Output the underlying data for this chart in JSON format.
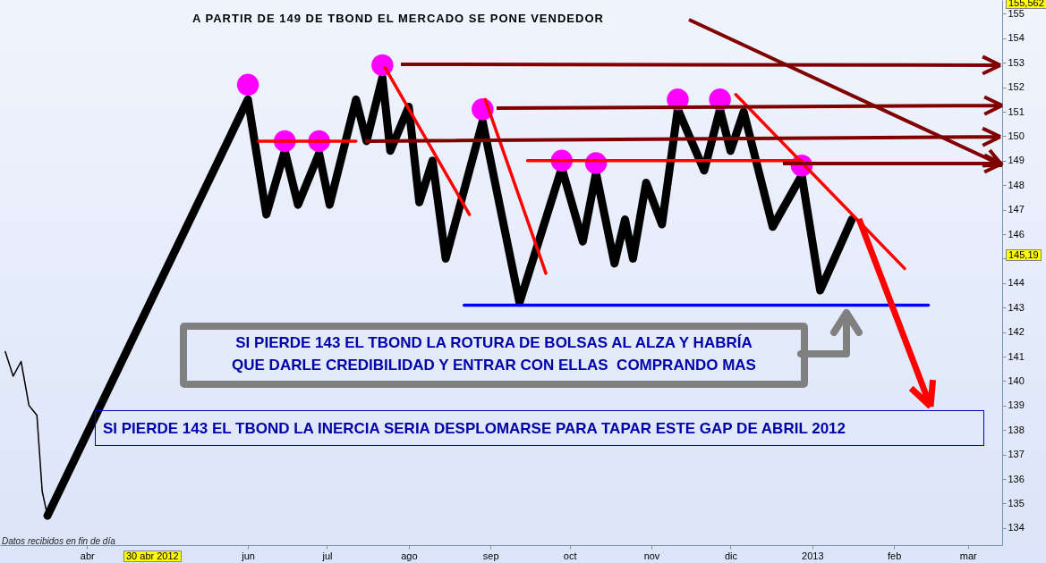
{
  "chart_data": {
    "type": "line",
    "title": "A PARTIR DE 149 DE TBOND EL MERCADO SE PONE VENDEDOR",
    "xlim": [
      "2012-02-28",
      "2013-03-14"
    ],
    "xticks": [
      {
        "value": "2012-04-01",
        "label": "abr"
      },
      {
        "value": "2012-06-01",
        "label": "jun"
      },
      {
        "value": "2012-07-01",
        "label": "jul"
      },
      {
        "value": "2012-08-01",
        "label": "ago"
      },
      {
        "value": "2012-09-01",
        "label": "sep"
      },
      {
        "value": "2012-10-01",
        "label": "oct"
      },
      {
        "value": "2012-11-01",
        "label": "nov"
      },
      {
        "value": "2012-12-01",
        "label": "dic"
      },
      {
        "value": "2013-01-01",
        "label": "2013"
      },
      {
        "value": "2013-02-01",
        "label": "feb"
      },
      {
        "value": "2013-03-01",
        "label": "mar"
      }
    ],
    "ylim": [
      133.3,
      155.562
    ],
    "yticks": [
      134,
      135,
      136,
      137,
      138,
      139,
      140,
      141,
      142,
      143,
      144,
      {
        "value": 145,
        "label": null
      },
      146,
      147,
      148,
      149,
      150,
      151,
      152,
      153,
      154,
      155
    ],
    "series": [
      {
        "color": "#000000",
        "x": [
          "2012-03-01",
          "2012-03-04",
          "2012-03-07",
          "2012-03-10",
          "2012-03-13",
          "2012-03-15",
          "2012-03-17"
        ],
        "values": [
          141.2,
          140.2,
          140.8,
          139,
          138.6,
          135.5,
          134.5
        ]
      },
      {
        "color": "#000000",
        "x": [
          "2012-03-17",
          "2012-06-01",
          "2012-06-08",
          "2012-06-15",
          "2012-06-20",
          "2012-06-28",
          "2012-07-02",
          "2012-07-12",
          "2012-07-16",
          "2012-07-22",
          "2012-07-25",
          "2012-08-01",
          "2012-08-05",
          "2012-08-10",
          "2012-08-15",
          "2012-08-29",
          "2012-09-12",
          "2012-09-28",
          "2012-10-06",
          "2012-10-11",
          "2012-10-18",
          "2012-10-22",
          "2012-10-25",
          "2012-10-30",
          "2012-11-05",
          "2012-11-11",
          "2012-11-21",
          "2012-11-27",
          "2012-12-01",
          "2012-12-06",
          "2012-12-17",
          "2012-12-28",
          "2013-01-04",
          "2013-01-16"
        ],
        "values": [
          134.5,
          151.5,
          146.8,
          149.4,
          147.2,
          149.3,
          147.2,
          151.5,
          149.8,
          152.4,
          149.4,
          151.2,
          147.3,
          149,
          145,
          150.6,
          143.2,
          148.7,
          145.7,
          148.5,
          144.8,
          146.6,
          145,
          148.1,
          146.4,
          151.1,
          148.6,
          151.1,
          149.4,
          151,
          146.3,
          148.4,
          143.7,
          146.6
        ]
      },
      {
        "type": "scatter",
        "marker": "circle",
        "color": "#ff00ff",
        "x": [
          "2012-06-01",
          "2012-06-15",
          "2012-06-28",
          "2012-07-22",
          "2012-08-29",
          "2012-09-28",
          "2012-10-11",
          "2012-11-11",
          "2012-11-27",
          "2012-12-28"
        ],
        "values": [
          152.1,
          149.8,
          149.8,
          152.9,
          151.1,
          149,
          148.9,
          151.5,
          151.5,
          148.8
        ]
      },
      {
        "type": "line",
        "color": "#ff0000",
        "x": [
          "2012-06-05",
          "2012-07-12"
        ],
        "values": [
          149.8,
          149.8
        ]
      },
      {
        "type": "line",
        "color": "#ff0000",
        "x": [
          "2012-09-15",
          "2012-12-28"
        ],
        "values": [
          149,
          149
        ]
      },
      {
        "type": "line",
        "color": "#ff0000",
        "x": [
          "2012-07-23",
          "2012-08-24"
        ],
        "values": [
          152.8,
          146.8
        ]
      },
      {
        "type": "line",
        "color": "#ff0000",
        "x": [
          "2012-08-30",
          "2012-09-22"
        ],
        "values": [
          151.5,
          144.4
        ]
      },
      {
        "type": "line",
        "color": "#ff0000",
        "x": [
          "2012-12-03",
          "2013-02-05"
        ],
        "values": [
          151.7,
          144.6
        ]
      },
      {
        "color": "#0000ff",
        "x": [
          "2012-08-22",
          "2013-02-14"
        ],
        "values": [
          143.1,
          143.1
        ]
      }
    ],
    "annotations": [
      "Datos recibidos en fin de día",
      "SI PIERDE 143 EL TBOND LA ROTURA DE BOLSAS AL ALZA Y HABRÍA\nQUE DARLE CREDIBILIDAD Y ENTRAR CON ELLAS  COMPRANDO MAS",
      "SI PIERDE 143 EL TBOND LA INERCIA SERIA DESPLOMARSE PARA TAPAR ESTE GAP DE ABRIL 2012",
      "155,562",
      "145,19",
      "30 abr 2012"
    ]
  }
}
